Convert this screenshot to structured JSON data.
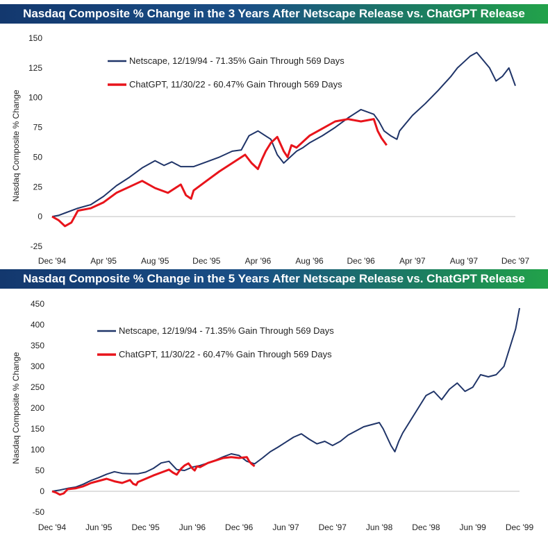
{
  "charts": [
    {
      "title": "Nasdaq Composite % Change in the 3 Years After Netscape Release vs. ChatGPT Release",
      "ylabel": "Nasdaq Composite % Change",
      "yticks": [
        "150",
        "125",
        "100",
        "75",
        "50",
        "25",
        "0",
        "-25"
      ],
      "xticks": [
        "Dec '94",
        "Apr '95",
        "Aug '95",
        "Dec '95",
        "Apr '96",
        "Aug '96",
        "Dec '96",
        "Apr '97",
        "Aug '97",
        "Dec '97"
      ],
      "legend": [
        "Netscape, 12/19/94 - 71.35% Gain Through 569 Days",
        "ChatGPT, 11/30/22 - 60.47% Gain Through 569 Days"
      ]
    },
    {
      "title": "Nasdaq Composite % Change in the 5 Years After Netscape Release vs. ChatGPT Release",
      "ylabel": "Nasdaq Composite % Change",
      "yticks": [
        "450",
        "400",
        "350",
        "300",
        "250",
        "200",
        "150",
        "100",
        "50",
        "0",
        "-50"
      ],
      "xticks": [
        "Dec '94",
        "Jun '95",
        "Dec '95",
        "Jun '96",
        "Dec '96",
        "Jun '97",
        "Dec '97",
        "Jun '98",
        "Dec '98",
        "Jun '99",
        "Dec '99"
      ],
      "legend": [
        "Netscape, 12/19/94 - 71.35% Gain Through 569 Days",
        "ChatGPT, 11/30/22 - 60.47% Gain Through 569 Days"
      ]
    }
  ],
  "colors": {
    "netscape": "#1f3468",
    "chatgpt": "#e8141b",
    "zero_line": "#bfbfbf"
  },
  "chart_data": [
    {
      "type": "line",
      "title": "Nasdaq Composite % Change in the 3 Years After Netscape Release vs. ChatGPT Release",
      "xlabel": "",
      "ylabel": "Nasdaq Composite % Change",
      "ylim": [
        -25,
        150
      ],
      "xlim_months": [
        0,
        36
      ],
      "series": [
        {
          "name": "Netscape, 12/19/94 - 71.35% Gain Through 569 Days",
          "x": [
            0,
            0.5,
            1,
            2,
            3,
            4,
            5,
            6,
            7,
            8,
            8.7,
            9.3,
            10,
            11,
            12,
            13,
            14,
            14.7,
            15.3,
            16,
            17,
            17.5,
            18,
            18.5,
            19,
            19.5,
            20,
            21,
            22,
            23,
            24,
            25,
            25.4,
            25.8,
            26.3,
            26.8,
            27,
            28,
            29,
            30,
            31,
            31.5,
            32,
            32.5,
            33,
            34,
            34.5,
            35,
            35.5,
            36
          ],
          "values": [
            0,
            1,
            3,
            7,
            10,
            17,
            26,
            33,
            41,
            47,
            43,
            46,
            42,
            42,
            46,
            50,
            55,
            56,
            68,
            72,
            65,
            52,
            45,
            50,
            55,
            58,
            62,
            68,
            75,
            83,
            90,
            86,
            80,
            72,
            68,
            65,
            72,
            85,
            95,
            106,
            118,
            125,
            130,
            135,
            138,
            125,
            114,
            118,
            125,
            110
          ]
        },
        {
          "name": "ChatGPT, 11/30/22 - 60.47% Gain Through 569 Days",
          "x": [
            0,
            0.5,
            1,
            1.5,
            2,
            3,
            4,
            5,
            6,
            7,
            8,
            9,
            10,
            10.4,
            10.8,
            11,
            12,
            13,
            14,
            15,
            15.5,
            16,
            16.3,
            16.6,
            17,
            17.5,
            18,
            18.3,
            18.6,
            19,
            20,
            21,
            22,
            23,
            24,
            25,
            25.3,
            25.6,
            26
          ],
          "values": [
            0,
            -3,
            -8,
            -5,
            5,
            7,
            12,
            20,
            25,
            30,
            24,
            20,
            27,
            18,
            15,
            22,
            30,
            38,
            45,
            52,
            45,
            40,
            48,
            55,
            62,
            67,
            55,
            50,
            60,
            58,
            68,
            74,
            80,
            82,
            80,
            82,
            72,
            66,
            60
          ]
        }
      ]
    },
    {
      "type": "line",
      "title": "Nasdaq Composite % Change in the 5 Years After Netscape Release vs. ChatGPT Release",
      "xlabel": "",
      "ylabel": "Nasdaq Composite % Change",
      "ylim": [
        -50,
        450
      ],
      "xlim_months": [
        0,
        60
      ],
      "series": [
        {
          "name": "Netscape, 12/19/94 - 71.35% Gain Through 569 Days",
          "x": [
            0,
            1,
            2,
            3,
            4,
            5,
            6,
            7,
            8,
            9,
            10,
            11,
            12,
            13,
            14,
            15,
            16,
            17,
            18,
            19,
            20,
            21,
            22,
            23,
            24,
            25,
            26,
            27,
            28,
            29,
            30,
            31,
            32,
            33,
            34,
            35,
            36,
            37,
            38,
            39,
            40,
            41,
            42,
            42.5,
            43,
            43.5,
            44,
            44.5,
            45,
            46,
            47,
            48,
            49,
            50,
            51,
            52,
            53,
            54,
            55,
            56,
            57,
            58,
            58.5,
            59,
            59.5,
            60
          ],
          "values": [
            0,
            3,
            7,
            10,
            17,
            26,
            33,
            41,
            47,
            43,
            42,
            42,
            46,
            55,
            68,
            72,
            52,
            50,
            58,
            62,
            68,
            75,
            83,
            90,
            86,
            72,
            66,
            80,
            95,
            106,
            118,
            130,
            138,
            125,
            114,
            120,
            110,
            120,
            135,
            145,
            155,
            160,
            165,
            150,
            130,
            110,
            95,
            120,
            140,
            170,
            200,
            230,
            240,
            220,
            245,
            260,
            240,
            250,
            280,
            275,
            280,
            300,
            330,
            360,
            390,
            440
          ]
        },
        {
          "name": "ChatGPT, 11/30/22 - 60.47% Gain Through 569 Days",
          "x": [
            0,
            0.5,
            1,
            1.5,
            2,
            3,
            4,
            5,
            6,
            7,
            8,
            9,
            10,
            10.4,
            10.8,
            11,
            12,
            13,
            14,
            15,
            15.5,
            16,
            16.3,
            16.6,
            17,
            17.5,
            18,
            18.3,
            18.6,
            19,
            20,
            21,
            22,
            23,
            24,
            25,
            25.3,
            25.6,
            26
          ],
          "values": [
            0,
            -3,
            -8,
            -5,
            5,
            7,
            12,
            20,
            25,
            30,
            24,
            20,
            27,
            18,
            15,
            22,
            30,
            38,
            45,
            52,
            45,
            40,
            48,
            55,
            62,
            67,
            55,
            50,
            60,
            58,
            68,
            74,
            80,
            82,
            80,
            82,
            72,
            66,
            60
          ]
        }
      ]
    }
  ]
}
